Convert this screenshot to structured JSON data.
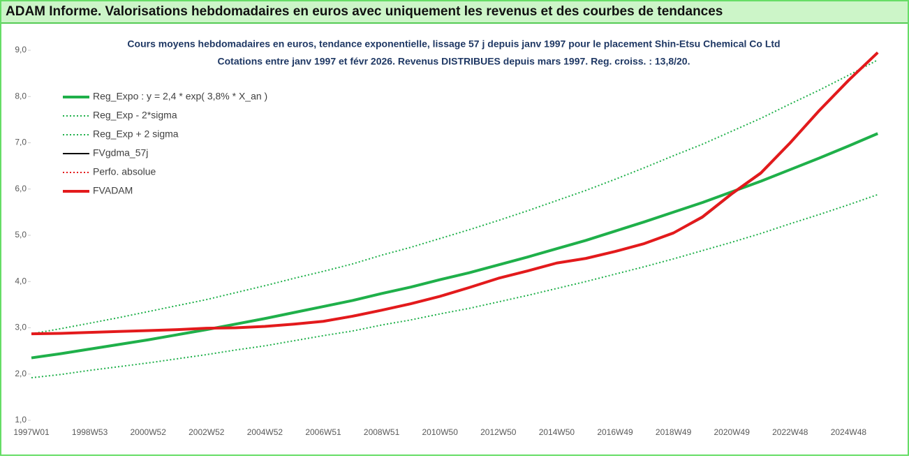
{
  "header": {
    "title": "ADAM Informe. Valorisations hebdomadaires en euros avec uniquement les revenus et des courbes de tendances"
  },
  "chart_data": {
    "type": "line",
    "title": "Cours moyens hebdomadaires en euros, tendance exponentielle, lissage 57 j depuis janv 1997 pour le placement Shin-Etsu Chemical Co Ltd",
    "subtitle": "Cotations entre janv 1997 et févr 2026. Revenus DISTRIBUES depuis mars 1997. Reg. croiss. : 13,8/20.",
    "categories": [
      "1997W01",
      null,
      "1998W53",
      null,
      "2000W52",
      null,
      "2002W52",
      null,
      "2004W52",
      null,
      "2006W51",
      null,
      "2008W51",
      null,
      "2010W50",
      null,
      "2012W50",
      null,
      "2014W50",
      null,
      "2016W49",
      null,
      "2018W49",
      null,
      "2020W49",
      null,
      "2022W48",
      null,
      "2024W48",
      null
    ],
    "ylim": [
      1,
      9
    ],
    "yticks": [
      {
        "value": 1,
        "label": "1,0"
      },
      {
        "value": 2,
        "label": "2,0"
      },
      {
        "value": 3,
        "label": "3,0"
      },
      {
        "value": 4,
        "label": "4,0"
      },
      {
        "value": 5,
        "label": "5,0"
      },
      {
        "value": 6,
        "label": "6,0"
      },
      {
        "value": 7,
        "label": "7,0"
      },
      {
        "value": 8,
        "label": "8,0"
      },
      {
        "value": 9,
        "label": "9,0"
      }
    ],
    "legend": "upper left",
    "series": [
      {
        "name": "Reg_Expo : y = 2,4 * exp( 3,8% *  X_an )",
        "color": "#1fb04a",
        "style": "solid",
        "width": 4,
        "values": [
          2.35,
          2.44,
          2.54,
          2.64,
          2.74,
          2.85,
          2.96,
          3.08,
          3.2,
          3.33,
          3.46,
          3.59,
          3.74,
          3.88,
          4.04,
          4.19,
          4.36,
          4.53,
          4.71,
          4.89,
          5.09,
          5.29,
          5.5,
          5.71,
          5.94,
          6.17,
          6.42,
          6.67,
          6.93,
          7.2
        ]
      },
      {
        "name": "Reg_Exp - 2*sigma",
        "color": "#1fb04a",
        "style": "dotted",
        "width": 2,
        "values": [
          1.92,
          1.99,
          2.08,
          2.16,
          2.24,
          2.33,
          2.42,
          2.52,
          2.61,
          2.72,
          2.83,
          2.93,
          3.06,
          3.17,
          3.3,
          3.42,
          3.56,
          3.7,
          3.85,
          4.0,
          4.16,
          4.32,
          4.49,
          4.67,
          4.85,
          5.04,
          5.25,
          5.45,
          5.66,
          5.88
        ]
      },
      {
        "name": "Reg_Exp + 2 sigma",
        "color": "#1fb04a",
        "style": "dotted",
        "width": 2,
        "values": [
          2.87,
          2.98,
          3.1,
          3.22,
          3.35,
          3.48,
          3.61,
          3.76,
          3.91,
          4.07,
          4.22,
          4.38,
          4.57,
          4.74,
          4.93,
          5.12,
          5.32,
          5.53,
          5.75,
          5.97,
          6.21,
          6.46,
          6.72,
          6.97,
          7.25,
          7.53,
          7.84,
          8.14,
          8.46,
          8.79
        ]
      },
      {
        "name": "FVgdma_57j",
        "color": "#000000",
        "style": "solid",
        "width": 2,
        "values": [
          2.87,
          2.88,
          2.9,
          2.92,
          2.94,
          2.96,
          2.99,
          3.0,
          3.03,
          3.07,
          3.13,
          3.24,
          3.37,
          3.51,
          3.67,
          3.86,
          4.06,
          4.22,
          4.39,
          4.5,
          4.64,
          4.81,
          5.04,
          5.38,
          5.88,
          6.33,
          6.98,
          7.68,
          8.33,
          8.95
        ]
      },
      {
        "name": "Perfo. absolue",
        "color": "#e31a1c",
        "style": "dotted",
        "width": 2,
        "values": [
          2.87,
          2.88,
          2.9,
          2.92,
          2.94,
          2.96,
          2.99,
          3.0,
          3.03,
          3.08,
          3.14,
          3.25,
          3.38,
          3.52,
          3.68,
          3.87,
          4.07,
          4.23,
          4.4,
          4.5,
          4.65,
          4.82,
          5.05,
          5.4,
          5.9,
          6.35,
          7.0,
          7.7,
          8.35,
          8.95
        ]
      },
      {
        "name": "FVADAM",
        "color": "#e31a1c",
        "style": "solid",
        "width": 4,
        "values": [
          2.87,
          2.88,
          2.9,
          2.92,
          2.94,
          2.96,
          2.99,
          3.0,
          3.03,
          3.08,
          3.14,
          3.25,
          3.38,
          3.52,
          3.68,
          3.87,
          4.07,
          4.23,
          4.4,
          4.5,
          4.65,
          4.82,
          5.05,
          5.4,
          5.9,
          6.35,
          7.0,
          7.7,
          8.35,
          8.95
        ]
      }
    ]
  }
}
